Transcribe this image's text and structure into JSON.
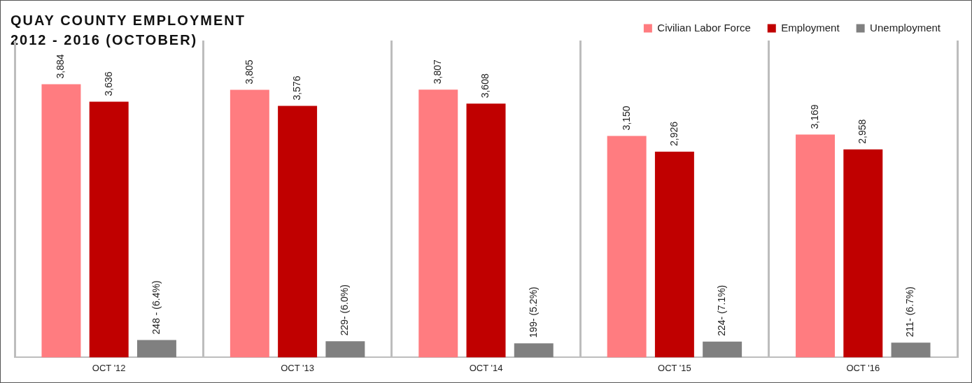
{
  "chart_data": {
    "type": "bar",
    "title": "QUAY COUNTY EMPLOYMENT",
    "subtitle": "2012 - 2016 (OCTOBER)",
    "categories": [
      "OCT '12",
      "OCT '13",
      "OCT '14",
      "OCT '15",
      "OCT '16"
    ],
    "series": [
      {
        "name": "Civilian Labor Force",
        "color": "#ff7c80",
        "values": [
          3884,
          3805,
          3807,
          3150,
          3169
        ],
        "value_labels": [
          "3,884",
          "3,805",
          "3,807",
          "3,150",
          "3,169"
        ]
      },
      {
        "name": "Employment",
        "color": "#c00000",
        "values": [
          3636,
          3576,
          3608,
          2926,
          2958
        ],
        "value_labels": [
          "3,636",
          "3,576",
          "3,608",
          "2,926",
          "2,958"
        ]
      },
      {
        "name": "Unemployment",
        "color": "#808080",
        "values": [
          248,
          229,
          199,
          224,
          211
        ],
        "value_labels": [
          "248 - (6.4%)",
          "229- (6.0%)",
          "199- (5.2%)",
          "224- (7.1%)",
          "211- (6.7%)"
        ]
      }
    ],
    "legend": "top right",
    "grid": "x"
  }
}
